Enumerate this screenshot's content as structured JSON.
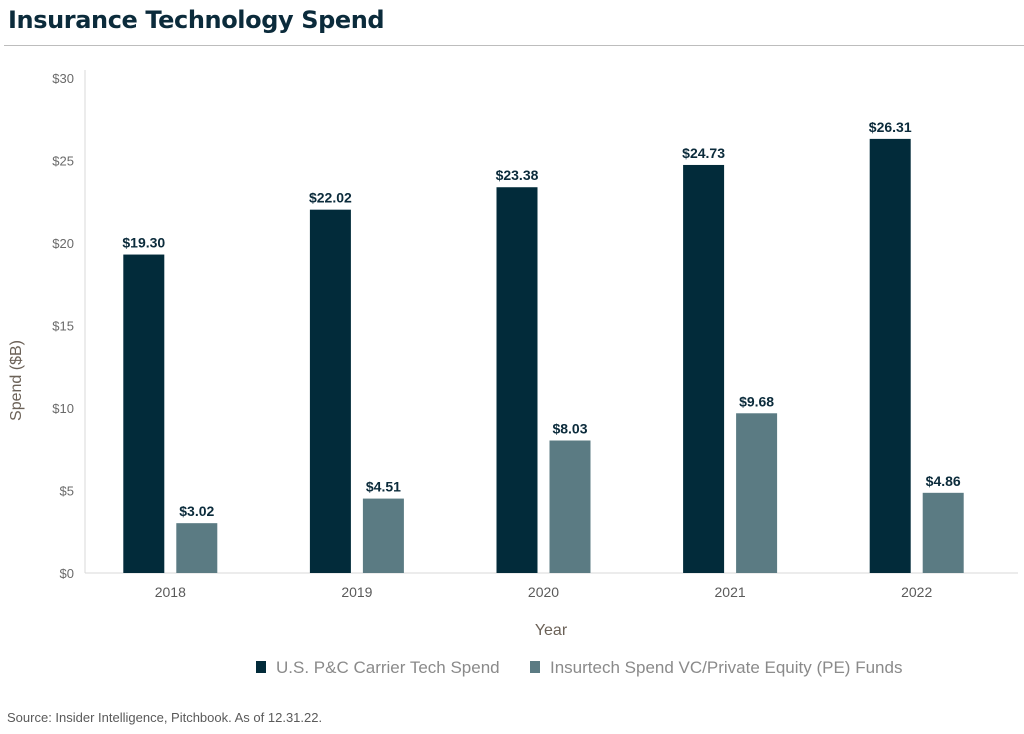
{
  "title": "Insurance Technology Spend",
  "source": "Source: Insider Intelligence, Pitchbook. As of 12.31.22.",
  "chart_data": {
    "type": "bar",
    "categories": [
      "2018",
      "2019",
      "2020",
      "2021",
      "2022"
    ],
    "series": [
      {
        "name": "U.S. P&C Carrier Tech Spend",
        "values": [
          19.3,
          22.02,
          23.38,
          24.73,
          26.31
        ],
        "labels": [
          "$19.30",
          "$22.02",
          "$23.38",
          "$24.73",
          "$26.31"
        ],
        "color": "#022b3a"
      },
      {
        "name": "Insurtech Spend VC/Private Equity (PE) Funds",
        "values": [
          3.02,
          4.51,
          8.03,
          9.68,
          4.86
        ],
        "labels": [
          "$3.02",
          "$4.51",
          "$8.03",
          "$9.68",
          "$4.86"
        ],
        "color": "#5b7b83"
      }
    ],
    "xlabel": "Year",
    "ylabel": "Spend ($B)",
    "ylim": [
      0,
      30
    ],
    "yticks": [
      0,
      5,
      10,
      15,
      20,
      25,
      30
    ],
    "ytick_labels": [
      "$0",
      "$5",
      "$10",
      "$15",
      "$20",
      "$25",
      "$30"
    ],
    "grid": false,
    "legend": "bottom-center"
  }
}
